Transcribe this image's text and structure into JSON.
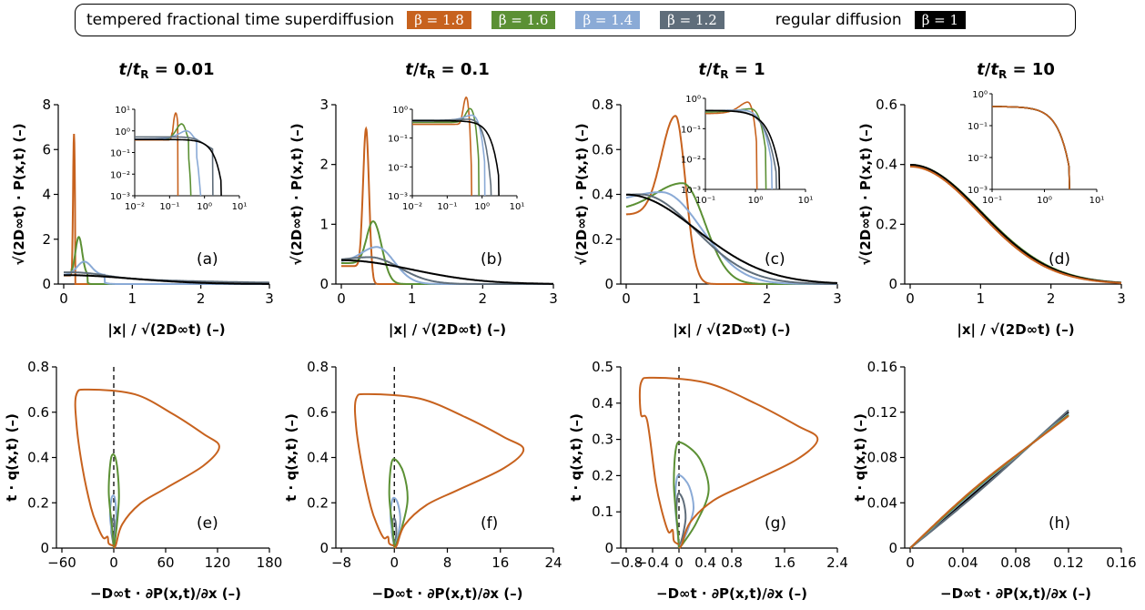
{
  "legend": {
    "left_text": "tempered fractional time superdiffusion",
    "right_text": "regular diffusion",
    "entries": [
      {
        "label": "β = 1.8",
        "color": "#c7621e"
      },
      {
        "label": "β = 1.6",
        "color": "#5b9034"
      },
      {
        "label": "β = 1.4",
        "color": "#8aaad6"
      },
      {
        "label": "β = 1.2",
        "color": "#5f6d7a"
      },
      {
        "label": "β = 1",
        "color": "#000000"
      }
    ]
  },
  "chart_data": [
    {
      "type": "line",
      "panel": "(a)",
      "title": "t/tR = 0.01",
      "xlabel": "|x| / √(2D∞t) (–)",
      "ylabel": "√(2D∞t) · P(x,t) (–)",
      "xlim": [
        0,
        3
      ],
      "ylim": [
        0,
        8
      ],
      "xticks": [
        "0",
        "1",
        "2",
        "3"
      ],
      "yticks": [
        "0",
        "2",
        "4",
        "6",
        "8"
      ],
      "series": [
        {
          "name": "β = 1.8",
          "peak_x": 0.15,
          "peak_y": 6.7
        },
        {
          "name": "β = 1.6",
          "peak_x": 0.22,
          "peak_y": 2.1
        },
        {
          "name": "β = 1.4",
          "peak_x": 0.3,
          "peak_y": 1.0
        },
        {
          "name": "β = 1.2",
          "peak_x": 0.35,
          "peak_y": 0.6
        },
        {
          "name": "β = 1",
          "peak_x": 0,
          "peak_y": 0.4
        }
      ],
      "inset": {
        "xticks": [
          "10⁻²",
          "10⁻¹",
          "10⁰",
          "10¹"
        ],
        "yticks": [
          "10¹",
          "10⁰",
          "10⁻¹",
          "10⁻²",
          "10⁻³"
        ]
      }
    },
    {
      "type": "line",
      "panel": "(b)",
      "title": "t/tR = 0.1",
      "xlabel": "|x| / √(2D∞t) (–)",
      "ylabel": "√(2D∞t) · P(x,t) (–)",
      "xlim": [
        0,
        3
      ],
      "ylim": [
        0,
        3
      ],
      "xticks": [
        "0",
        "1",
        "2",
        "3"
      ],
      "yticks": [
        "0",
        "1",
        "2",
        "3"
      ],
      "series": [
        {
          "name": "β = 1.8",
          "peak_x": 0.35,
          "peak_y": 2.6
        },
        {
          "name": "β = 1.6",
          "peak_x": 0.45,
          "peak_y": 1.05
        },
        {
          "name": "β = 1.4",
          "peak_x": 0.5,
          "peak_y": 0.62
        },
        {
          "name": "β = 1.2",
          "peak_x": 0.4,
          "peak_y": 0.45
        },
        {
          "name": "β = 1",
          "peak_x": 0,
          "peak_y": 0.4
        }
      ],
      "inset": {
        "xticks": [
          "10⁻²",
          "10⁻¹",
          "10⁰",
          "10¹"
        ],
        "yticks": [
          "10⁰",
          "10⁻¹",
          "10⁻²",
          "10⁻³"
        ]
      }
    },
    {
      "type": "line",
      "panel": "(c)",
      "title": "t/tR = 1",
      "xlabel": "|x| / √(2D∞t) (–)",
      "ylabel": "√(2D∞t) · P(x,t) (–)",
      "xlim": [
        0,
        3
      ],
      "ylim": [
        0,
        0.8
      ],
      "xticks": [
        "0",
        "1",
        "2",
        "3"
      ],
      "yticks": [
        "0",
        "0.2",
        "0.4",
        "0.6",
        "0.8"
      ],
      "series": [
        {
          "name": "β = 1.8",
          "peak_x": 0.7,
          "peak_y": 0.75
        },
        {
          "name": "β = 1.6",
          "peak_x": 0.8,
          "peak_y": 0.45
        },
        {
          "name": "β = 1.4",
          "peak_x": 0.5,
          "peak_y": 0.41
        },
        {
          "name": "β = 1.2",
          "peak_x": 0.2,
          "peak_y": 0.4
        },
        {
          "name": "β = 1",
          "peak_x": 0,
          "peak_y": 0.4
        }
      ],
      "inset": {
        "xticks": [
          "10⁻¹",
          "10⁰",
          "10¹"
        ],
        "yticks": [
          "10⁰",
          "10⁻¹",
          "10⁻²",
          "10⁻³"
        ]
      }
    },
    {
      "type": "line",
      "panel": "(d)",
      "title": "t/tR = 10",
      "xlabel": "|x| / √(2D∞t) (–)",
      "ylabel": "√(2D∞t) · P(x,t) (–)",
      "xlim": [
        0,
        3
      ],
      "ylim": [
        0,
        0.6
      ],
      "xticks": [
        "0",
        "1",
        "2",
        "3"
      ],
      "yticks": [
        "0",
        "0.2",
        "0.4",
        "0.6"
      ],
      "series": [
        {
          "name": "all β",
          "peak_x": 0,
          "peak_y": 0.4
        }
      ],
      "inset": {
        "xticks": [
          "10⁻¹",
          "10⁰",
          "10¹"
        ],
        "yticks": [
          "10⁰",
          "10⁻¹",
          "10⁻²",
          "10⁻³"
        ]
      }
    },
    {
      "type": "line",
      "panel": "(e)",
      "xlabel": "−D∞t · ∂P(x,t)/∂x (–)",
      "ylabel": "t · q(x,t) (–)",
      "xlim": [
        -60,
        180
      ],
      "ylim": [
        0,
        0.8
      ],
      "xticks": [
        "−60",
        "0",
        "60",
        "120",
        "180"
      ],
      "yticks": [
        "0",
        "0.2",
        "0.4",
        "0.6",
        "0.8"
      ],
      "series": [
        {
          "name": "β = 1.8",
          "max_x": 122,
          "max_y": 0.7
        },
        {
          "name": "β = 1.6",
          "max_x": 6,
          "max_y": 0.41
        },
        {
          "name": "β = 1.4",
          "max_x": 3,
          "max_y": 0.23
        },
        {
          "name": "β = 1.2",
          "max_x": 1,
          "max_y": 0.13
        }
      ]
    },
    {
      "type": "line",
      "panel": "(f)",
      "xlabel": "−D∞t · ∂P(x,t)/∂x (–)",
      "ylabel": "t · q(x,t) (–)",
      "xlim": [
        -8,
        24
      ],
      "ylim": [
        0,
        0.8
      ],
      "xticks": [
        "−8",
        "0",
        "8",
        "16",
        "24"
      ],
      "yticks": [
        "0",
        "0.2",
        "0.4",
        "0.6",
        "0.8"
      ],
      "series": [
        {
          "name": "β = 1.8",
          "max_x": 19.5,
          "max_y": 0.68
        },
        {
          "name": "β = 1.6",
          "max_x": 2.0,
          "max_y": 0.39
        },
        {
          "name": "β = 1.4",
          "max_x": 0.9,
          "max_y": 0.22
        },
        {
          "name": "β = 1.2",
          "max_x": 0.3,
          "max_y": 0.13
        }
      ]
    },
    {
      "type": "line",
      "panel": "(g)",
      "xlabel": "−D∞t · ∂P(x,t)/∂x (–)",
      "ylabel": "t · q(x,t) (–)",
      "xlim": [
        -0.8,
        2.4
      ],
      "ylim": [
        0,
        0.5
      ],
      "xticks": [
        "−0.8",
        "−0.4",
        "0",
        "0.4",
        "0.8",
        "1.6",
        "2.4"
      ],
      "yticks": [
        "0",
        "0.1",
        "0.2",
        "0.3",
        "0.4",
        "0.5"
      ],
      "series": [
        {
          "name": "β = 1.8",
          "max_x": 2.1,
          "max_y": 0.47
        },
        {
          "name": "β = 1.6",
          "max_x": 0.45,
          "max_y": 0.29
        },
        {
          "name": "β = 1.4",
          "max_x": 0.22,
          "max_y": 0.2
        },
        {
          "name": "β = 1.2",
          "max_x": 0.1,
          "max_y": 0.15
        }
      ]
    },
    {
      "type": "line",
      "panel": "(h)",
      "xlabel": "−D∞t · ∂P(x,t)/∂x (–)",
      "ylabel": "t · q(x,t) (–)",
      "xlim": [
        0,
        0.16
      ],
      "ylim": [
        0,
        0.16
      ],
      "xticks": [
        "0",
        "0.04",
        "0.08",
        "0.12",
        "0.16"
      ],
      "yticks": [
        "0",
        "0.04",
        "0.08",
        "0.12",
        "0.16"
      ],
      "series": [
        {
          "name": "all β",
          "end_x": 0.12,
          "end_y": 0.12
        }
      ]
    }
  ]
}
